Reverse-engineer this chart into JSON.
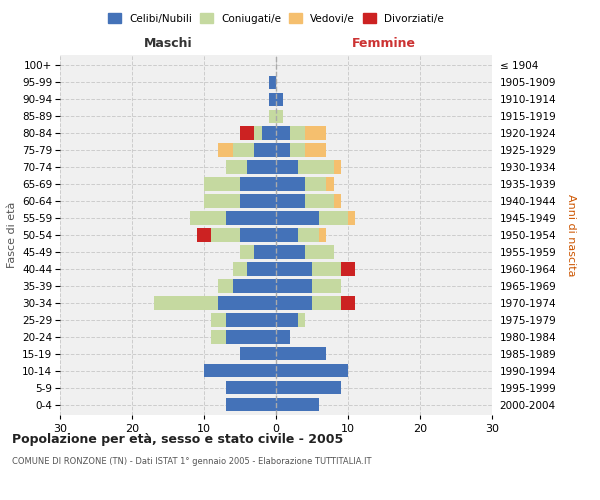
{
  "age_groups": [
    "0-4",
    "5-9",
    "10-14",
    "15-19",
    "20-24",
    "25-29",
    "30-34",
    "35-39",
    "40-44",
    "45-49",
    "50-54",
    "55-59",
    "60-64",
    "65-69",
    "70-74",
    "75-79",
    "80-84",
    "85-89",
    "90-94",
    "95-99",
    "100+"
  ],
  "birth_years": [
    "2000-2004",
    "1995-1999",
    "1990-1994",
    "1985-1989",
    "1980-1984",
    "1975-1979",
    "1970-1974",
    "1965-1969",
    "1960-1964",
    "1955-1959",
    "1950-1954",
    "1945-1949",
    "1940-1944",
    "1935-1939",
    "1930-1934",
    "1925-1929",
    "1920-1924",
    "1915-1919",
    "1910-1914",
    "1905-1909",
    "≤ 1904"
  ],
  "colors": {
    "celibi": "#4472b8",
    "coniugati": "#c5d9a0",
    "vedovi": "#f5bf6e",
    "divorziati": "#cc2222"
  },
  "males": {
    "celibi": [
      7,
      7,
      10,
      5,
      7,
      7,
      8,
      6,
      4,
      3,
      5,
      7,
      5,
      5,
      4,
      3,
      2,
      0,
      1,
      1,
      0
    ],
    "coniugati": [
      0,
      0,
      0,
      0,
      2,
      2,
      9,
      2,
      2,
      2,
      4,
      5,
      5,
      5,
      3,
      3,
      1,
      1,
      0,
      0,
      0
    ],
    "vedovi": [
      0,
      0,
      0,
      0,
      0,
      0,
      0,
      0,
      0,
      0,
      0,
      0,
      0,
      0,
      0,
      2,
      0,
      0,
      0,
      0,
      0
    ],
    "divorziati": [
      0,
      0,
      0,
      0,
      0,
      0,
      0,
      0,
      0,
      0,
      2,
      0,
      0,
      0,
      0,
      0,
      2,
      0,
      0,
      0,
      0
    ]
  },
  "females": {
    "nubili": [
      6,
      9,
      10,
      7,
      2,
      3,
      5,
      5,
      5,
      4,
      3,
      6,
      4,
      4,
      3,
      2,
      2,
      0,
      1,
      0,
      0
    ],
    "coniugate": [
      0,
      0,
      0,
      0,
      0,
      1,
      4,
      4,
      4,
      4,
      3,
      4,
      4,
      3,
      5,
      2,
      2,
      1,
      0,
      0,
      0
    ],
    "vedove": [
      0,
      0,
      0,
      0,
      0,
      0,
      0,
      0,
      0,
      0,
      1,
      1,
      1,
      1,
      1,
      3,
      3,
      0,
      0,
      0,
      0
    ],
    "divorziate": [
      0,
      0,
      0,
      0,
      0,
      0,
      2,
      0,
      2,
      0,
      0,
      0,
      0,
      0,
      0,
      0,
      0,
      0,
      0,
      0,
      0
    ]
  },
  "xlim": 30,
  "title": "Popolazione per età, sesso e stato civile - 2005",
  "subtitle": "COMUNE DI RONZONE (TN) - Dati ISTAT 1° gennaio 2005 - Elaborazione TUTTITALIA.IT",
  "ylabel_left": "Fasce di età",
  "ylabel_right": "Anni di nascita",
  "xlabel_left": "Maschi",
  "xlabel_right": "Femmine",
  "legend_labels": [
    "Celibi/Nubili",
    "Coniugati/e",
    "Vedovi/e",
    "Divorziati/e"
  ],
  "bg_color": "#ffffff",
  "plot_bg_color": "#f0f0f0"
}
